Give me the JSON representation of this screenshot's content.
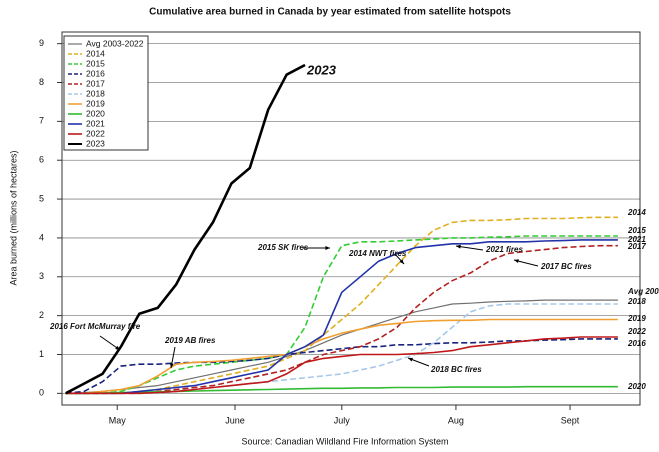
{
  "chart_data": {
    "type": "line",
    "title": "Cumulative area burned in Canada by year estimated from satellite hotspots",
    "y_label": "Area burned (millions of hectares)",
    "source": "Source: Canadian Wildland Fire Information System",
    "x": [
      121,
      126,
      131,
      136,
      141,
      146,
      151,
      156,
      161,
      166,
      171,
      176,
      181,
      186,
      191,
      196,
      201,
      206,
      211,
      216,
      221,
      226,
      231,
      236,
      241,
      246,
      251,
      256,
      261,
      266,
      271
    ],
    "xlim": [
      120,
      277
    ],
    "xticks": [
      {
        "value": 135,
        "label": "May"
      },
      {
        "value": 167,
        "label": "June"
      },
      {
        "value": 196,
        "label": "July"
      },
      {
        "value": 227,
        "label": "Aug"
      },
      {
        "value": 258,
        "label": "Sept"
      }
    ],
    "ylim": [
      -0.3,
      9.3
    ],
    "yticks": [
      0,
      1,
      2,
      3,
      4,
      5,
      6,
      7,
      8,
      9
    ],
    "grid": true,
    "legend": "upper left",
    "series": [
      {
        "name": "Avg 2003-2022",
        "color": "#707070",
        "dash": false,
        "width": 1.2,
        "values": [
          0,
          0.02,
          0.05,
          0.1,
          0.15,
          0.2,
          0.3,
          0.4,
          0.5,
          0.6,
          0.7,
          0.8,
          0.95,
          1.1,
          1.3,
          1.5,
          1.65,
          1.8,
          1.95,
          2.1,
          2.2,
          2.3,
          2.32,
          2.35,
          2.37,
          2.38,
          2.4,
          2.4,
          2.4,
          2.4,
          2.4
        ]
      },
      {
        "name": "2014",
        "color": "#e0b020",
        "dash": true,
        "width": 1.6,
        "values": [
          0,
          0,
          0,
          0,
          0.05,
          0.1,
          0.2,
          0.3,
          0.4,
          0.5,
          0.6,
          0.7,
          0.9,
          1.1,
          1.5,
          1.9,
          2.3,
          2.8,
          3.3,
          3.8,
          4.2,
          4.4,
          4.45,
          4.45,
          4.47,
          4.5,
          4.5,
          4.5,
          4.52,
          4.53,
          4.53
        ]
      },
      {
        "name": "2015",
        "color": "#33cc33",
        "dash": true,
        "width": 1.6,
        "values": [
          0,
          0,
          0,
          0.05,
          0.2,
          0.4,
          0.6,
          0.7,
          0.75,
          0.8,
          0.85,
          0.9,
          1.0,
          1.7,
          3.0,
          3.8,
          3.9,
          3.9,
          3.92,
          3.95,
          3.97,
          4.0,
          4.0,
          4.02,
          4.03,
          4.05,
          4.05,
          4.05,
          4.05,
          4.05,
          4.05
        ]
      },
      {
        "name": "2016",
        "color": "#1a237e",
        "dash": true,
        "width": 1.6,
        "values": [
          0,
          0.05,
          0.3,
          0.7,
          0.75,
          0.75,
          0.78,
          0.8,
          0.8,
          0.82,
          0.85,
          0.9,
          1.0,
          1.05,
          1.1,
          1.15,
          1.2,
          1.2,
          1.25,
          1.25,
          1.28,
          1.3,
          1.3,
          1.32,
          1.35,
          1.35,
          1.37,
          1.38,
          1.4,
          1.4,
          1.4
        ]
      },
      {
        "name": "2017",
        "color": "#b22222",
        "dash": true,
        "width": 1.6,
        "values": [
          0,
          0,
          0,
          0,
          0,
          0.05,
          0.1,
          0.15,
          0.2,
          0.3,
          0.4,
          0.5,
          0.6,
          0.8,
          1.0,
          1.1,
          1.2,
          1.4,
          1.7,
          2.2,
          2.6,
          2.9,
          3.1,
          3.4,
          3.6,
          3.65,
          3.7,
          3.75,
          3.78,
          3.8,
          3.8
        ]
      },
      {
        "name": "2018",
        "color": "#a8c8e8",
        "dash": true,
        "width": 1.6,
        "values": [
          0,
          0,
          0,
          0,
          0,
          0,
          0.05,
          0.1,
          0.15,
          0.2,
          0.25,
          0.3,
          0.35,
          0.4,
          0.45,
          0.5,
          0.6,
          0.7,
          0.85,
          1.0,
          1.3,
          1.7,
          2.1,
          2.25,
          2.3,
          2.3,
          2.3,
          2.3,
          2.3,
          2.3,
          2.3
        ]
      },
      {
        "name": "2019",
        "color": "#f0a030",
        "dash": false,
        "width": 1.6,
        "values": [
          0,
          0,
          0.05,
          0.1,
          0.2,
          0.45,
          0.75,
          0.8,
          0.82,
          0.85,
          0.9,
          0.95,
          1.0,
          1.2,
          1.4,
          1.55,
          1.65,
          1.75,
          1.8,
          1.85,
          1.87,
          1.88,
          1.88,
          1.9,
          1.9,
          1.9,
          1.9,
          1.9,
          1.9,
          1.9,
          1.9
        ]
      },
      {
        "name": "2020",
        "color": "#33bb33",
        "dash": false,
        "width": 1.6,
        "values": [
          0,
          0,
          0.01,
          0.02,
          0.03,
          0.04,
          0.05,
          0.06,
          0.07,
          0.08,
          0.09,
          0.1,
          0.11,
          0.12,
          0.13,
          0.13,
          0.14,
          0.14,
          0.15,
          0.15,
          0.15,
          0.16,
          0.16,
          0.16,
          0.16,
          0.17,
          0.17,
          0.17,
          0.17,
          0.17,
          0.17
        ]
      },
      {
        "name": "2021",
        "color": "#2233aa",
        "dash": false,
        "width": 1.6,
        "values": [
          0,
          0,
          0,
          0,
          0.05,
          0.1,
          0.15,
          0.2,
          0.3,
          0.4,
          0.5,
          0.6,
          1.0,
          1.2,
          1.5,
          2.6,
          3.0,
          3.4,
          3.6,
          3.75,
          3.8,
          3.85,
          3.85,
          3.9,
          3.9,
          3.9,
          3.92,
          3.93,
          3.95,
          3.95,
          3.95
        ]
      },
      {
        "name": "2022",
        "color": "#c01818",
        "dash": false,
        "width": 1.6,
        "values": [
          0,
          0,
          0,
          0,
          0,
          0.02,
          0.05,
          0.1,
          0.15,
          0.2,
          0.25,
          0.3,
          0.5,
          0.8,
          0.9,
          0.95,
          1.0,
          1.0,
          1.0,
          1.02,
          1.05,
          1.1,
          1.2,
          1.25,
          1.3,
          1.35,
          1.4,
          1.42,
          1.45,
          1.45,
          1.45
        ]
      },
      {
        "name": "2023",
        "color": "#000000",
        "dash": false,
        "width": 2.6,
        "values": [
          0,
          0.25,
          0.5,
          1.2,
          2.05,
          2.2,
          2.8,
          3.7,
          4.4,
          5.4,
          5.8,
          7.3,
          8.2,
          8.45,
          null,
          null,
          null,
          null,
          null,
          null,
          null,
          null,
          null,
          null,
          null,
          null,
          null,
          null,
          null,
          null,
          null
        ]
      }
    ],
    "annotations": [
      "2016 Fort McMurray fire",
      "2019 AB fires",
      "2015 SK fires",
      "2014 NWT fires",
      "2021 fires",
      "2017 BC fires",
      "2018 BC fires"
    ]
  }
}
